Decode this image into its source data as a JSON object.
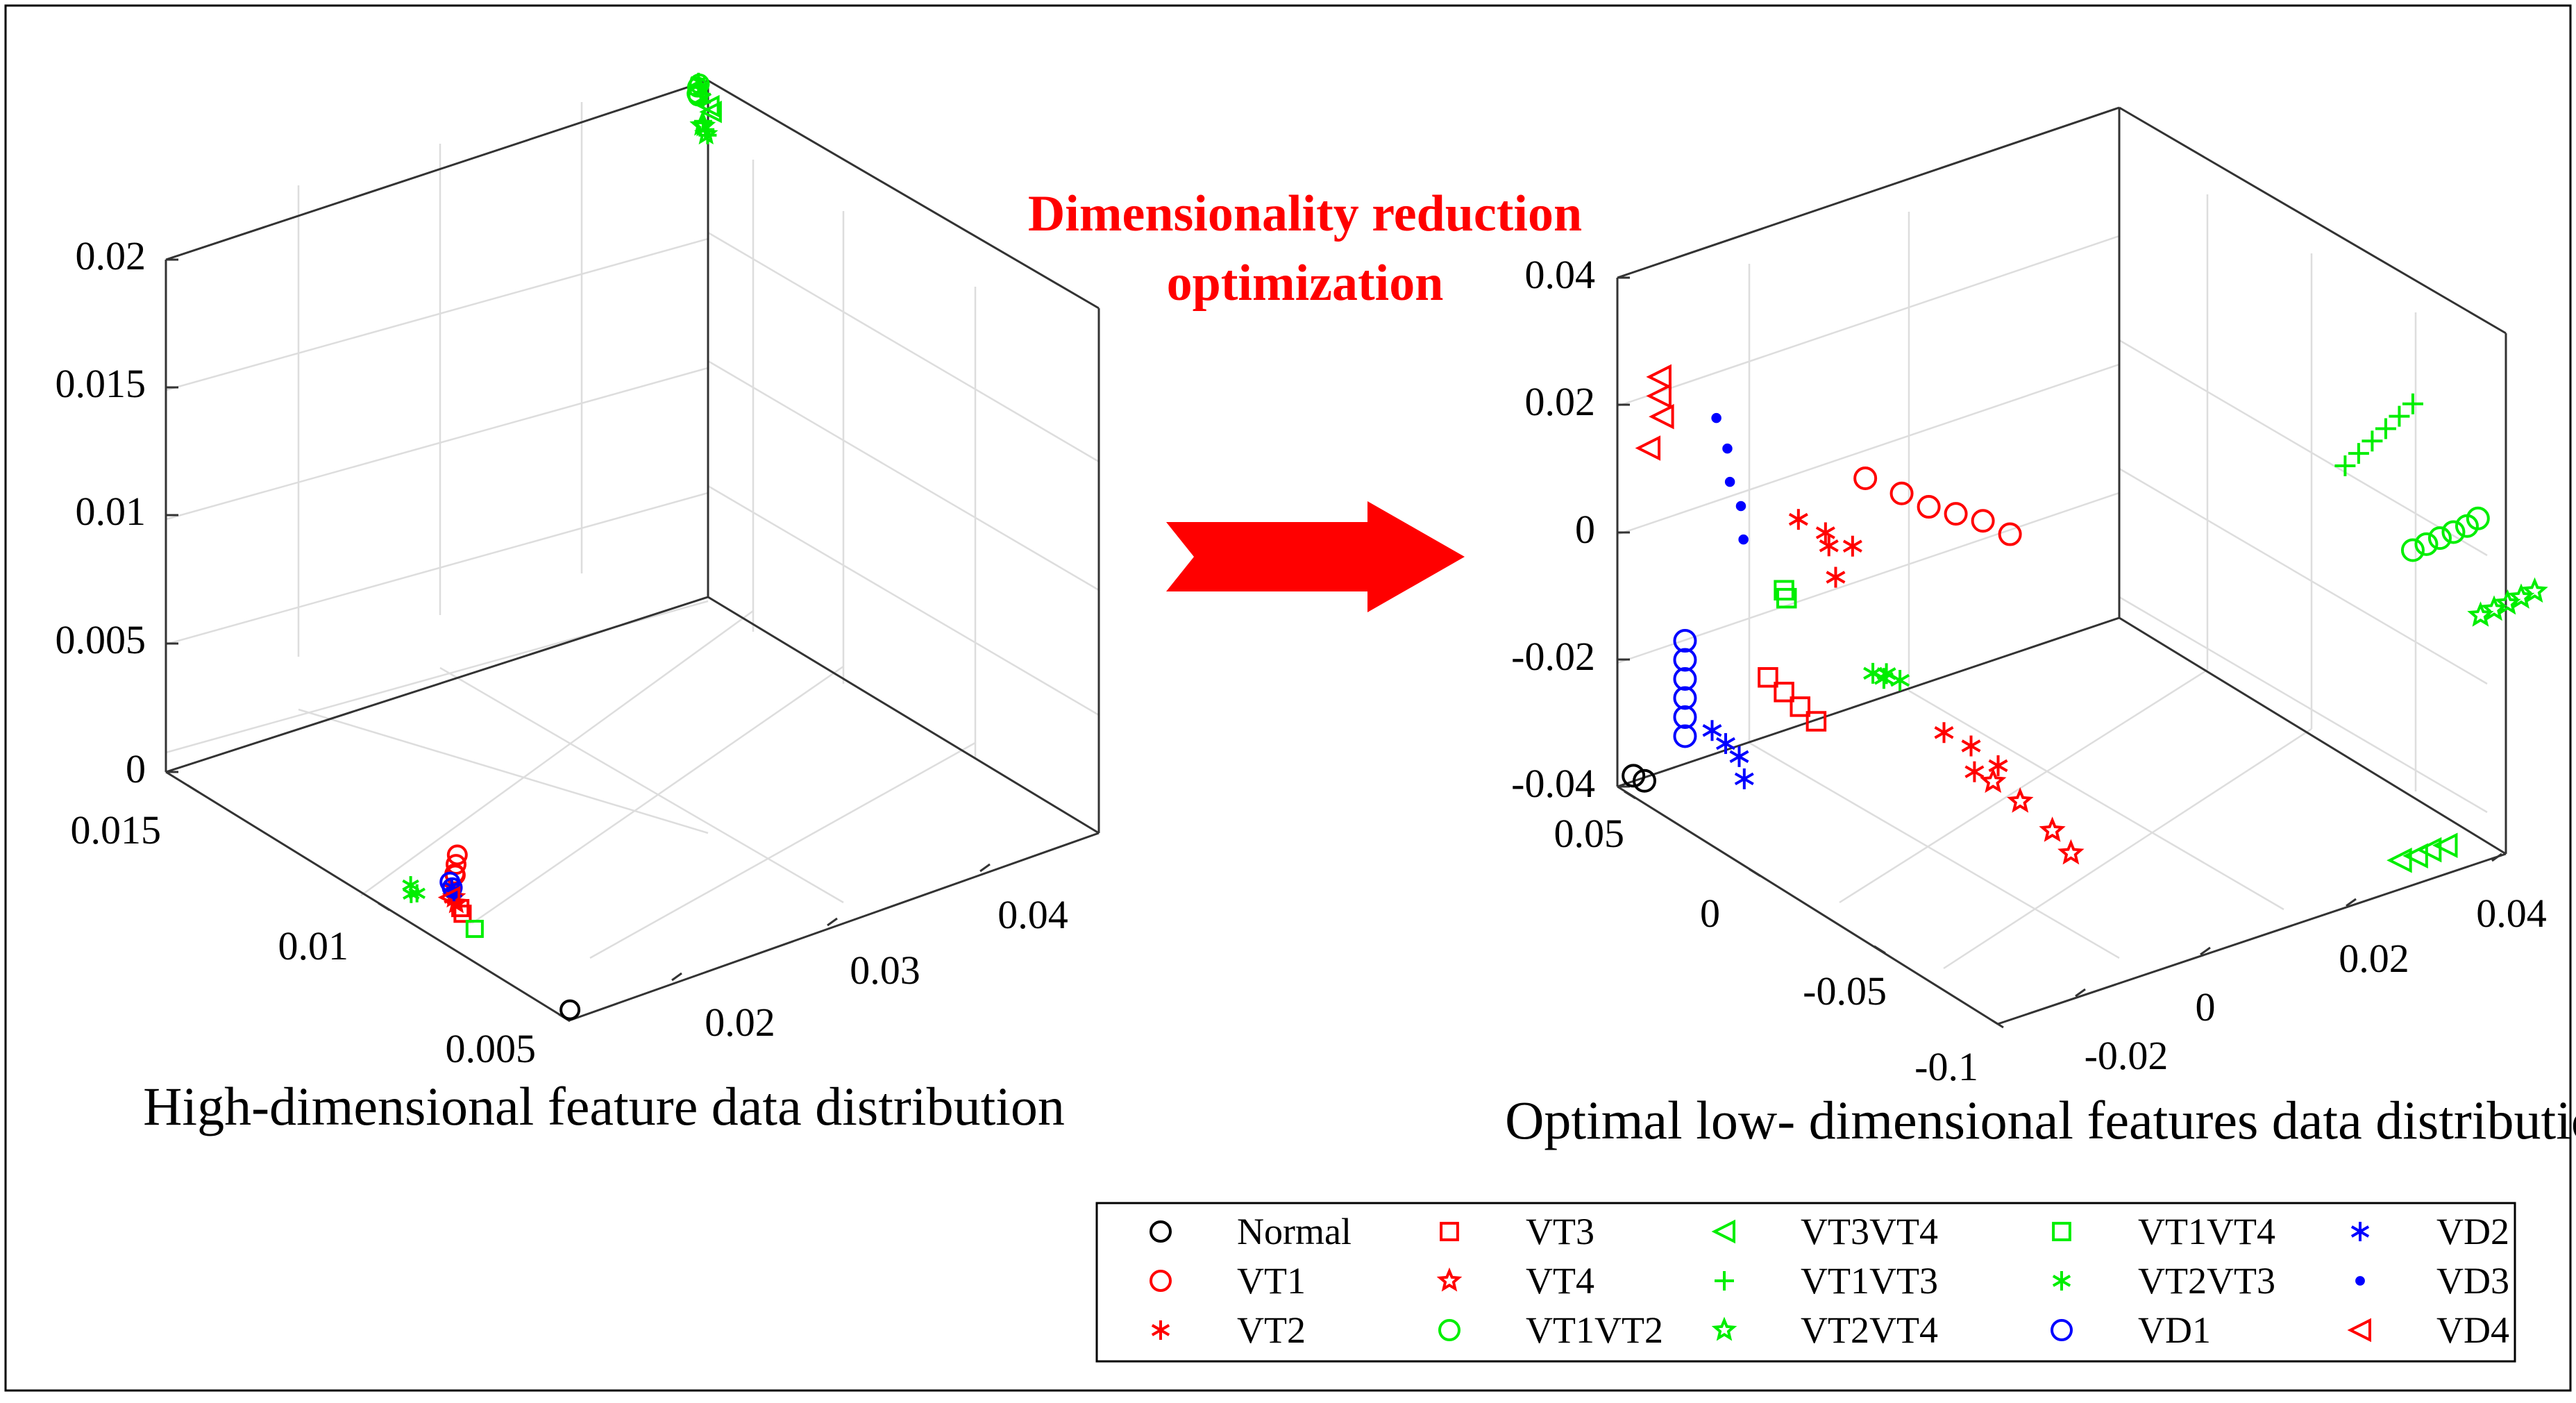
{
  "colors": {
    "black": "#000000",
    "red": "#ff0000",
    "green": "#00ee00",
    "blue": "#0000ff",
    "grid": "#dddddd",
    "axis": "#333333"
  },
  "annotation": {
    "line1": "Dimensionality reduction",
    "line2": "optimization",
    "arrow": "right-arrow-icon"
  },
  "chart_data": [
    {
      "type": "scatter",
      "projection": "3d",
      "title": "High-dimensional feature data distribution",
      "xlabel": "",
      "ylabel": "",
      "zlabel": "",
      "grid": true,
      "xlim": [
        0.005,
        0.015
      ],
      "ylim": [
        0.015,
        0.045
      ],
      "zlim": [
        0,
        0.02
      ],
      "x_ticks": [
        "0.015",
        "0.01",
        "0.005"
      ],
      "y_ticks": [
        "0.02",
        "0.03",
        "0.04"
      ],
      "z_ticks": [
        "0",
        "0.005",
        "0.01",
        "0.015",
        "0.02"
      ],
      "series": [
        {
          "name": "Normal",
          "points": [
            [
              0.0052,
              0.0155,
              0.0001
            ]
          ]
        },
        {
          "name": "VT1",
          "points": [
            [
              0.0088,
              0.0172,
              0.0015
            ],
            [
              0.0089,
              0.0175,
              0.0017
            ],
            [
              0.009,
              0.0178,
              0.0019
            ],
            [
              0.0087,
              0.017,
              0.0016
            ]
          ]
        },
        {
          "name": "VT2",
          "points": [
            [
              0.0086,
              0.0166,
              0.0009
            ],
            [
              0.0087,
              0.0168,
              0.0011
            ],
            [
              0.0085,
              0.0165,
              0.001
            ]
          ]
        },
        {
          "name": "VT3",
          "points": [
            [
              0.0083,
              0.0165,
              0.0006
            ],
            [
              0.0084,
              0.0166,
              0.0007
            ]
          ]
        },
        {
          "name": "VT4",
          "points": [
            [
              0.0085,
              0.0166,
              0.0008
            ],
            [
              0.0086,
              0.0167,
              0.0009
            ]
          ]
        },
        {
          "name": "VT1VT2",
          "points": [
            [
              0.0145,
              0.044,
              0.0198
            ],
            [
              0.0146,
              0.0442,
              0.02
            ],
            [
              0.0147,
              0.0444,
              0.0196
            ],
            [
              0.0146,
              0.0443,
              0.0201
            ]
          ]
        },
        {
          "name": "VT1VT3",
          "points": [
            [
              0.0141,
              0.0435,
              0.019
            ],
            [
              0.0142,
              0.0436,
              0.0192
            ],
            [
              0.014,
              0.0434,
              0.0189
            ]
          ]
        },
        {
          "name": "VT2VT3",
          "points": [
            [
              0.0093,
              0.0162,
              0.0005
            ],
            [
              0.0095,
              0.0163,
              0.0006
            ],
            [
              0.0094,
              0.0161,
              0.0004
            ],
            [
              0.0143,
              0.0437,
              0.0203
            ],
            [
              0.0144,
              0.0438,
              0.0205
            ],
            [
              0.0142,
              0.0436,
              0.0201
            ]
          ]
        },
        {
          "name": "VT2VT4",
          "points": [
            [
              0.0143,
              0.044,
              0.0185
            ],
            [
              0.0144,
              0.0441,
              0.0187
            ],
            [
              0.0145,
              0.0442,
              0.0186
            ]
          ]
        },
        {
          "name": "VT3VT4",
          "points": [
            [
              0.0143,
              0.0443,
              0.0193
            ],
            [
              0.0144,
              0.0444,
              0.0194
            ]
          ]
        },
        {
          "name": "VT1VT4",
          "points": [
            [
              0.008,
              0.0165,
              0.0003
            ]
          ]
        },
        {
          "name": "VD1",
          "points": [
            [
              0.0086,
              0.0166,
              0.0013
            ],
            [
              0.0087,
              0.0167,
              0.0014
            ]
          ]
        },
        {
          "name": "VD2",
          "points": [
            [
              0.0086,
              0.0167,
              0.0011
            ],
            [
              0.0087,
              0.0168,
              0.0012
            ]
          ]
        },
        {
          "name": "VD3",
          "points": [
            [
              0.0086,
              0.0167,
              0.001
            ]
          ]
        },
        {
          "name": "VD4",
          "points": [
            [
              0.0087,
              0.0167,
              0.0008
            ]
          ]
        }
      ]
    },
    {
      "type": "scatter",
      "projection": "3d",
      "title": "Optimal low- dimensional features data distribution",
      "xlabel": "",
      "ylabel": "",
      "zlabel": "",
      "grid": true,
      "xlim": [
        -0.1,
        0.05
      ],
      "ylim": [
        -0.02,
        0.04
      ],
      "zlim": [
        -0.04,
        0.04
      ],
      "x_ticks": [
        "0.05",
        "0",
        "-0.05",
        "-0.1"
      ],
      "y_ticks": [
        "-0.02",
        "0",
        "0.02",
        "0.04"
      ],
      "z_ticks": [
        "-0.04",
        "-0.02",
        "0",
        "0.02",
        "0.04"
      ],
      "series": [
        {
          "name": "Normal",
          "points": [
            [
              0.047,
              -0.019,
              -0.038
            ],
            [
              0.046,
              -0.018,
              -0.039
            ]
          ]
        },
        {
          "name": "VT1",
          "points": [
            [
              0.004,
              -0.0045,
              0.013
            ],
            [
              -0.002,
              -0.002,
              0.011
            ],
            [
              -0.006,
              0.0,
              0.009
            ],
            [
              -0.01,
              0.002,
              0.008
            ],
            [
              -0.014,
              0.004,
              0.007
            ],
            [
              -0.018,
              0.006,
              0.005
            ]
          ]
        },
        {
          "name": "VT2",
          "points": [
            [
              0.012,
              -0.01,
              0.007
            ],
            [
              0.008,
              -0.008,
              0.005
            ],
            [
              0.004,
              -0.006,
              0.003
            ],
            [
              0.01,
              -0.007,
              0.002
            ],
            [
              0.004,
              -0.008,
              -0.001
            ],
            [
              -0.012,
              0.0,
              -0.025
            ],
            [
              -0.016,
              0.002,
              -0.027
            ],
            [
              -0.02,
              0.004,
              -0.03
            ],
            [
              -0.014,
              0.003,
              -0.032
            ]
          ]
        },
        {
          "name": "VT3",
          "points": [
            [
              0.014,
              -0.013,
              -0.017
            ],
            [
              0.011,
              -0.012,
              -0.019
            ],
            [
              0.008,
              -0.011,
              -0.021
            ],
            [
              0.005,
              -0.01,
              -0.023
            ]
          ]
        },
        {
          "name": "VT4",
          "points": [
            [
              -0.018,
              0.004,
              -0.033
            ],
            [
              -0.022,
              0.006,
              -0.036
            ],
            [
              -0.028,
              0.008,
              -0.04
            ],
            [
              -0.032,
              0.009,
              -0.043
            ]
          ]
        },
        {
          "name": "VT1VT2",
          "points": [
            [
              -0.08,
              0.035,
              0.005
            ],
            [
              -0.082,
              0.036,
              0.006
            ],
            [
              -0.084,
              0.037,
              0.007
            ],
            [
              -0.086,
              0.038,
              0.008
            ],
            [
              -0.088,
              0.039,
              0.009
            ],
            [
              -0.089,
              0.04,
              0.01
            ]
          ]
        },
        {
          "name": "VT1VT3",
          "points": [
            [
              -0.07,
              0.03,
              0.018
            ],
            [
              -0.072,
              0.031,
              0.02
            ],
            [
              -0.074,
              0.032,
              0.022
            ],
            [
              -0.076,
              0.033,
              0.024
            ],
            [
              -0.078,
              0.034,
              0.026
            ],
            [
              -0.08,
              0.035,
              0.028
            ]
          ]
        },
        {
          "name": "VT2VT3",
          "points": [
            [
              -0.004,
              -0.006,
              -0.015
            ],
            [
              -0.006,
              -0.005,
              -0.015
            ],
            [
              -0.008,
              -0.004,
              -0.016
            ],
            [
              -0.005,
              -0.005,
              -0.016
            ]
          ]
        },
        {
          "name": "VT2VT4",
          "points": [
            [
              -0.09,
              0.04,
              -0.005
            ],
            [
              -0.092,
              0.041,
              -0.004
            ],
            [
              -0.094,
              0.042,
              -0.003
            ],
            [
              -0.096,
              0.043,
              -0.002
            ],
            [
              -0.098,
              0.044,
              -0.001
            ]
          ]
        },
        {
          "name": "VT3VT4",
          "points": [
            [
              -0.075,
              0.035,
              -0.045
            ],
            [
              -0.078,
              0.036,
              -0.044
            ],
            [
              -0.08,
              0.037,
              -0.043
            ],
            [
              -0.083,
              0.038,
              -0.042
            ]
          ]
        },
        {
          "name": "VT1VT4",
          "points": [
            [
              0.01,
              -0.012,
              -0.004
            ],
            [
              0.011,
              -0.012,
              -0.003
            ]
          ]
        },
        {
          "name": "VD1",
          "points": [
            [
              0.03,
              -0.018,
              -0.013
            ],
            [
              0.03,
              -0.018,
              -0.016
            ],
            [
              0.03,
              -0.018,
              -0.019
            ],
            [
              0.03,
              -0.018,
              -0.022
            ],
            [
              0.03,
              -0.018,
              -0.025
            ],
            [
              0.03,
              -0.018,
              -0.028
            ]
          ]
        },
        {
          "name": "VD2",
          "points": [
            [
              0.026,
              -0.016,
              -0.027
            ],
            [
              0.024,
              -0.015,
              -0.029
            ],
            [
              0.022,
              -0.014,
              -0.031
            ],
            [
              0.02,
              -0.014,
              -0.034
            ]
          ]
        },
        {
          "name": "VD3",
          "points": [
            [
              0.031,
              -0.014,
              0.02
            ],
            [
              0.03,
              -0.013,
              0.015
            ],
            [
              0.029,
              -0.013,
              0.01
            ],
            [
              0.028,
              -0.012,
              0.006
            ],
            [
              0.027,
              -0.012,
              0.001
            ]
          ]
        },
        {
          "name": "VD4",
          "points": [
            [
              0.04,
              -0.018,
              0.026
            ],
            [
              0.04,
              -0.018,
              0.023
            ],
            [
              0.039,
              -0.018,
              0.02
            ],
            [
              0.041,
              -0.019,
              0.015
            ]
          ]
        }
      ]
    }
  ],
  "legend": {
    "items": [
      {
        "label": "Normal",
        "marker": "circle-marker-icon",
        "color": "#000000"
      },
      {
        "label": "VT1",
        "marker": "circle-marker-icon",
        "color": "#ff0000"
      },
      {
        "label": "VT2",
        "marker": "asterisk-marker-icon",
        "color": "#ff0000"
      },
      {
        "label": "VT3",
        "marker": "square-marker-icon",
        "color": "#ff0000"
      },
      {
        "label": "VT4",
        "marker": "star-marker-icon",
        "color": "#ff0000"
      },
      {
        "label": "VT1VT2",
        "marker": "circle-marker-icon",
        "color": "#00ee00"
      },
      {
        "label": "VT3VT4",
        "marker": "triangle-left-marker-icon",
        "color": "#00ee00"
      },
      {
        "label": "VT1VT3",
        "marker": "plus-marker-icon",
        "color": "#00ee00"
      },
      {
        "label": "VT2VT4",
        "marker": "star-marker-icon",
        "color": "#00ee00"
      },
      {
        "label": "VT1VT4",
        "marker": "square-marker-icon",
        "color": "#00ee00"
      },
      {
        "label": "VT2VT3",
        "marker": "asterisk-marker-icon",
        "color": "#00ee00"
      },
      {
        "label": "VD1",
        "marker": "circle-marker-icon",
        "color": "#0000ff"
      },
      {
        "label": "VD2",
        "marker": "asterisk-marker-icon",
        "color": "#0000ff"
      },
      {
        "label": "VD3",
        "marker": "dot-marker-icon",
        "color": "#0000ff"
      },
      {
        "label": "VD4",
        "marker": "triangle-left-marker-icon",
        "color": "#ff0000"
      }
    ]
  }
}
